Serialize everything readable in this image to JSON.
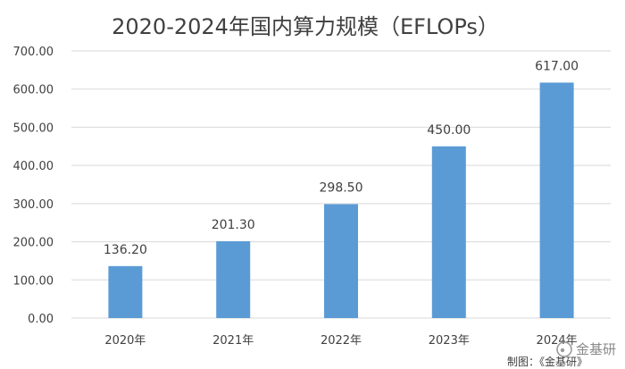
{
  "chart_data": {
    "type": "bar",
    "title": "2020-2024年国内算力规模（EFLOPs）",
    "categories": [
      "2020年",
      "2021年",
      "2022年",
      "2023年",
      "2024年"
    ],
    "values": [
      136.2,
      201.3,
      298.5,
      450.0,
      617.0
    ],
    "value_labels": [
      "136.20",
      "201.30",
      "298.50",
      "450.00",
      "617.00"
    ],
    "y_ticks": [
      "0.00",
      "100.00",
      "200.00",
      "300.00",
      "400.00",
      "500.00",
      "600.00",
      "700.00"
    ],
    "ylim": [
      0,
      700
    ],
    "grid": true,
    "legend": "none",
    "bar_color": "#5b9bd5",
    "grid_color": "#d9d9d9"
  },
  "footer": {
    "credit": "制图：《金基研》",
    "watermark": "金基研"
  }
}
